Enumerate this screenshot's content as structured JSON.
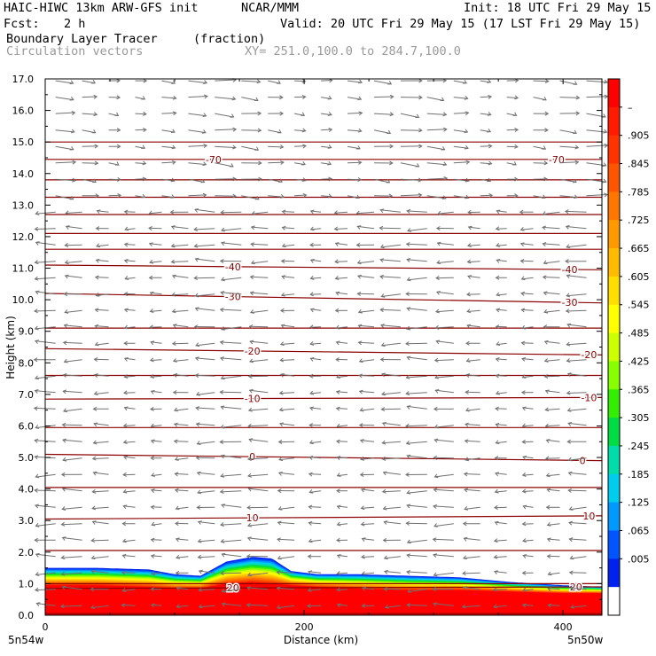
{
  "header": {
    "model": "HAIC-HIWC 13km ARW-GFS init",
    "org": "NCAR/MMM",
    "init": "Init: 18 UTC Fri 29 May 15",
    "fcst_label": "Fcst:",
    "fcst_value": "2 h",
    "valid": "Valid: 20 UTC Fri 29 May 15 (17 LST Fri 29 May 15)",
    "field": "Boundary Layer Tracer",
    "units": "(fraction)",
    "vectors": "Circulation vectors",
    "xy": "XY= 251.0,100.0 to 284.7,100.0"
  },
  "chart_data": {
    "type": "heatmap",
    "xlabel": "Distance (km)",
    "ylabel": "Height (km)",
    "xlim": [
      0,
      430
    ],
    "ylim": [
      0,
      17
    ],
    "x_ticks": [
      "0",
      "200",
      "400"
    ],
    "y_ticks": [
      "0.0",
      "1.0",
      "2.0",
      "3.0",
      "4.0",
      "5.0",
      "6.0",
      "7.0",
      "8.0",
      "9.0",
      "10.0",
      "11.0",
      "12.0",
      "13.0",
      "14.0",
      "15.0",
      "16.0",
      "17.0"
    ],
    "x_end_labels": {
      "left": "5n54w",
      "right": "5n50w"
    },
    "colorbar_labels": [
      "–",
      ".905",
      ".845",
      ".785",
      ".725",
      ".665",
      ".605",
      ".545",
      ".485",
      ".425",
      ".365",
      ".305",
      ".245",
      ".185",
      ".125",
      ".065",
      ".005"
    ],
    "colorbar_colors": [
      "#ff0000",
      "#ff1a00",
      "#ff3300",
      "#ff5500",
      "#ff7700",
      "#ff9900",
      "#ffbb00",
      "#ffdd00",
      "#ffff00",
      "#ccff00",
      "#88ff00",
      "#33ee00",
      "#00dd44",
      "#00ddaa",
      "#00ccee",
      "#0099ff",
      "#0055ff",
      "#0022ee",
      "#ffffff"
    ],
    "tracer_top_profile": {
      "x": [
        0,
        40,
        80,
        100,
        120,
        140,
        160,
        175,
        190,
        210,
        240,
        280,
        320,
        360,
        400,
        430
      ],
      "top": [
        1.5,
        1.5,
        1.45,
        1.3,
        1.25,
        1.7,
        1.85,
        1.8,
        1.4,
        1.3,
        1.3,
        1.25,
        1.2,
        1.05,
        0.95,
        0.9
      ],
      "red": [
        0.95,
        0.95,
        0.9,
        0.85,
        0.85,
        1.0,
        1.05,
        1.0,
        0.95,
        0.9,
        0.85,
        0.8,
        0.8,
        0.75,
        0.7,
        0.7
      ]
    },
    "contours": [
      {
        "label": "-70",
        "y0": 14.45,
        "y1": 14.45,
        "label_x": [
          130,
          395
        ]
      },
      {
        "label": "-40",
        "y0": 11.1,
        "y1": 10.95,
        "label_x": [
          145,
          405
        ]
      },
      {
        "label": "-30",
        "y0": 10.2,
        "y1": 9.9,
        "label_x": [
          145,
          405
        ]
      },
      {
        "label": "-20",
        "y0": 8.45,
        "y1": 8.25,
        "label_x": [
          160,
          420
        ]
      },
      {
        "label": "-10",
        "y0": 6.85,
        "y1": 6.9,
        "label_x": [
          160,
          420
        ]
      },
      {
        "label": "0",
        "y0": 5.1,
        "y1": 4.9,
        "label_x": [
          160,
          415
        ]
      },
      {
        "label": "10",
        "y0": 3.05,
        "y1": 3.15,
        "label_x": [
          160,
          420
        ]
      },
      {
        "label": "20",
        "y0": 0.85,
        "y1": 0.9,
        "label_x": [
          145,
          410
        ]
      }
    ],
    "unlabeled_contours": [
      15.0,
      13.8,
      13.25,
      12.7,
      12.1,
      11.6,
      9.1,
      7.6,
      5.95,
      4.05,
      2.05,
      1.0,
      0.05
    ]
  }
}
